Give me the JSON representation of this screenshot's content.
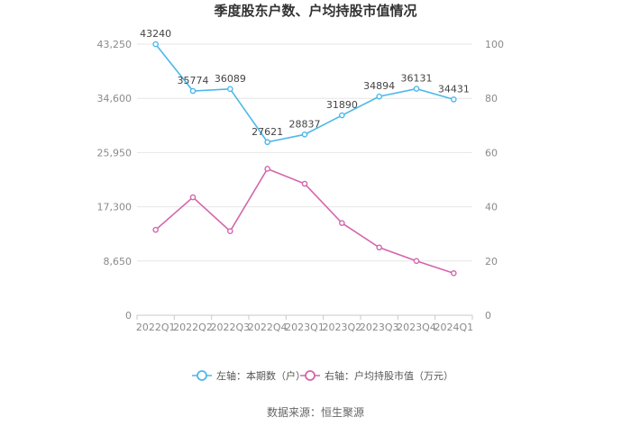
{
  "chart_data": {
    "type": "line",
    "title": "季度股东户数、户均持股市值情况",
    "categories": [
      "2022Q1",
      "2022Q2",
      "2022Q3",
      "2022Q4",
      "2023Q1",
      "2023Q2",
      "2023Q3",
      "2023Q4",
      "2024Q1"
    ],
    "y_left": {
      "ticks": [
        "0",
        "8,650",
        "17,300",
        "25,950",
        "34,600",
        "43,250"
      ],
      "min": 0,
      "max": 43250
    },
    "y_right": {
      "ticks": [
        "0",
        "20",
        "40",
        "60",
        "80",
        "100"
      ],
      "min": 0,
      "max": 100
    },
    "grid": true,
    "legend_position": "bottom",
    "series": [
      {
        "name": "左轴：本期数（户）",
        "axis": "left",
        "color": "#4cb8ea",
        "values": [
          43240,
          35774,
          36089,
          27621,
          28837,
          31890,
          34894,
          36131,
          34431
        ],
        "labels": [
          "43240",
          "35774",
          "36089",
          "27621",
          "28837",
          "31890",
          "34894",
          "36131",
          "34431"
        ]
      },
      {
        "name": "右轴：户均持股市值（万元）",
        "axis": "right",
        "color": "#d365ac",
        "values": [
          31.5,
          43.5,
          31.0,
          54.0,
          48.5,
          34.0,
          25.0,
          20.0,
          15.5
        ]
      }
    ],
    "source": "数据来源：恒生聚源"
  }
}
